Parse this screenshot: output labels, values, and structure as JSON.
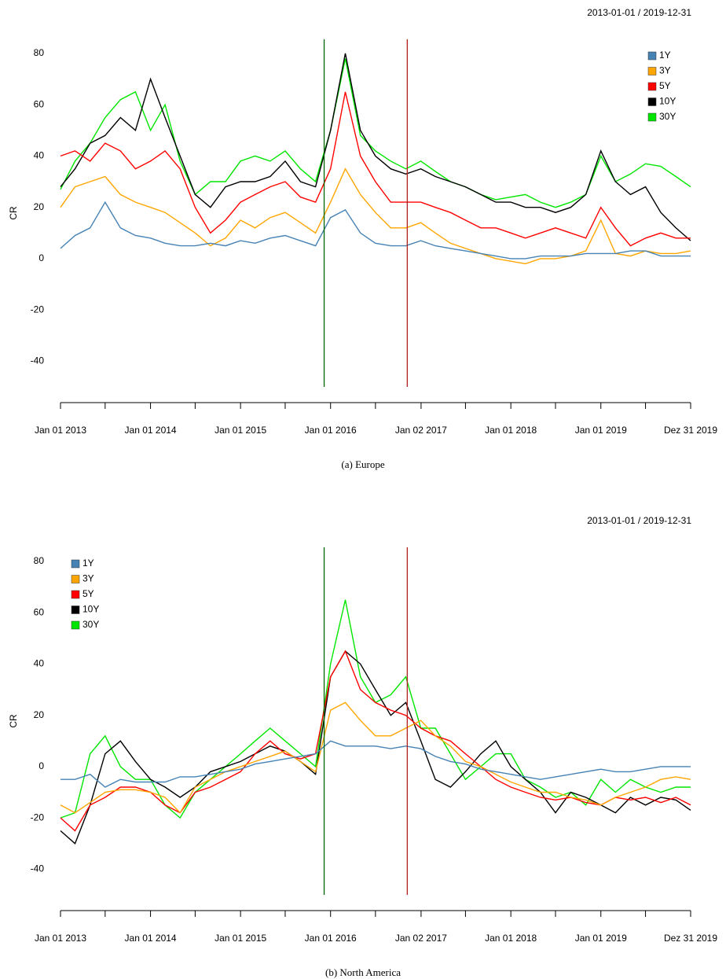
{
  "chart_data": [
    {
      "type": "line",
      "range_label": "2013-01-01 / 2019-12-31",
      "y_label": "CR",
      "caption": "(a) Europe",
      "legend": "top-right",
      "grid": false,
      "xlim": [
        "2013-01-01",
        "2019-12-31"
      ],
      "ylim": [
        -50,
        85.5
      ],
      "yticks": [
        -40,
        -20,
        0,
        20,
        40,
        60,
        80
      ],
      "xticks": [
        {
          "value": "2013-01-01",
          "label": "Jan 01 2013"
        },
        {
          "value": "2014-01-01",
          "label": "Jan 01 2014"
        },
        {
          "value": "2015-01-01",
          "label": "Jan 01 2015"
        },
        {
          "value": "2016-01-01",
          "label": "Jan 01 2016"
        },
        {
          "value": "2017-01-02",
          "label": "Jan 02 2017"
        },
        {
          "value": "2018-01-01",
          "label": "Jan 01 2018"
        },
        {
          "value": "2019-01-01",
          "label": "Jan 01 2019"
        },
        {
          "value": "2019-12-31",
          "label": "Dez 31 2019"
        }
      ],
      "xminorticks": [
        "2013-07-01",
        "2014-07-01",
        "2015-07-01",
        "2016-07-01",
        "2017-07-01",
        "2018-07-01",
        "2019-07-01"
      ],
      "vlines": [
        {
          "x": "2015-12-06",
          "color": "#006400"
        },
        {
          "x": "2016-11-07",
          "color": "#b22222"
        }
      ],
      "x": [
        "2013-01-01",
        "2013-03-01",
        "2013-05-01",
        "2013-07-01",
        "2013-09-01",
        "2013-11-01",
        "2014-01-01",
        "2014-03-01",
        "2014-05-01",
        "2014-07-01",
        "2014-09-01",
        "2014-11-01",
        "2015-01-01",
        "2015-03-01",
        "2015-05-01",
        "2015-07-01",
        "2015-09-01",
        "2015-11-01",
        "2016-01-01",
        "2016-03-01",
        "2016-05-01",
        "2016-07-01",
        "2016-09-01",
        "2016-11-01",
        "2017-01-01",
        "2017-03-01",
        "2017-05-01",
        "2017-07-01",
        "2017-09-01",
        "2017-11-01",
        "2018-01-01",
        "2018-03-01",
        "2018-05-01",
        "2018-07-01",
        "2018-09-01",
        "2018-11-01",
        "2019-01-01",
        "2019-03-01",
        "2019-05-01",
        "2019-07-01",
        "2019-09-01",
        "2019-11-01",
        "2019-12-31"
      ],
      "series": [
        {
          "name": "1Y",
          "color": "#4682b4",
          "values": [
            4,
            9,
            12,
            22,
            12,
            9,
            8,
            6,
            5,
            5,
            6,
            5,
            7,
            6,
            8,
            9,
            7,
            5,
            16,
            19,
            10,
            6,
            5,
            5,
            7,
            5,
            4,
            3,
            2,
            1,
            0,
            0,
            1,
            1,
            1,
            2,
            2,
            2,
            3,
            3,
            1,
            1,
            1
          ]
        },
        {
          "name": "3Y",
          "color": "#ffa500",
          "values": [
            20,
            28,
            30,
            32,
            25,
            22,
            20,
            18,
            14,
            10,
            5,
            8,
            15,
            12,
            16,
            18,
            14,
            10,
            22,
            35,
            25,
            18,
            12,
            12,
            14,
            10,
            6,
            4,
            2,
            0,
            -1,
            -2,
            0,
            0,
            1,
            3,
            15,
            2,
            1,
            3,
            2,
            2,
            3
          ]
        },
        {
          "name": "5Y",
          "color": "#ff0000",
          "values": [
            40,
            42,
            38,
            45,
            42,
            35,
            38,
            42,
            35,
            20,
            10,
            15,
            22,
            25,
            28,
            30,
            24,
            22,
            35,
            65,
            40,
            30,
            22,
            22,
            22,
            20,
            18,
            15,
            12,
            12,
            10,
            8,
            10,
            12,
            10,
            8,
            20,
            12,
            5,
            8,
            10,
            8,
            8
          ]
        },
        {
          "name": "10Y",
          "color": "#000000",
          "values": [
            28,
            35,
            45,
            48,
            55,
            50,
            70,
            55,
            40,
            25,
            20,
            28,
            30,
            30,
            32,
            38,
            30,
            28,
            50,
            80,
            50,
            40,
            35,
            33,
            35,
            32,
            30,
            28,
            25,
            22,
            22,
            20,
            20,
            18,
            20,
            25,
            42,
            30,
            25,
            28,
            18,
            12,
            7
          ]
        },
        {
          "name": "30Y",
          "color": "#00e600",
          "values": [
            27,
            38,
            45,
            55,
            62,
            65,
            50,
            60,
            38,
            25,
            30,
            30,
            38,
            40,
            38,
            42,
            35,
            30,
            50,
            78,
            48,
            42,
            38,
            35,
            38,
            34,
            30,
            28,
            25,
            23,
            24,
            25,
            22,
            20,
            22,
            25,
            40,
            30,
            33,
            37,
            36,
            32,
            28
          ]
        }
      ]
    },
    {
      "type": "line",
      "range_label": "2013-01-01 / 2019-12-31",
      "y_label": "CR",
      "caption": "(b) North America",
      "legend": "top-left",
      "grid": false,
      "xlim": [
        "2013-01-01",
        "2019-12-31"
      ],
      "ylim": [
        -50,
        85.5
      ],
      "yticks": [
        -40,
        -20,
        0,
        20,
        40,
        60,
        80
      ],
      "xticks": [
        {
          "value": "2013-01-01",
          "label": "Jan 01 2013"
        },
        {
          "value": "2014-01-01",
          "label": "Jan 01 2014"
        },
        {
          "value": "2015-01-01",
          "label": "Jan 01 2015"
        },
        {
          "value": "2016-01-01",
          "label": "Jan 01 2016"
        },
        {
          "value": "2017-01-02",
          "label": "Jan 02 2017"
        },
        {
          "value": "2018-01-01",
          "label": "Jan 01 2018"
        },
        {
          "value": "2019-01-01",
          "label": "Jan 01 2019"
        },
        {
          "value": "2019-12-31",
          "label": "Dez 31 2019"
        }
      ],
      "xminorticks": [
        "2013-07-01",
        "2014-07-01",
        "2015-07-01",
        "2016-07-01",
        "2017-07-01",
        "2018-07-01",
        "2019-07-01"
      ],
      "vlines": [
        {
          "x": "2015-12-06",
          "color": "#006400"
        },
        {
          "x": "2016-11-07",
          "color": "#b22222"
        }
      ],
      "x": [
        "2013-01-01",
        "2013-03-01",
        "2013-05-01",
        "2013-07-01",
        "2013-09-01",
        "2013-11-01",
        "2014-01-01",
        "2014-03-01",
        "2014-05-01",
        "2014-07-01",
        "2014-09-01",
        "2014-11-01",
        "2015-01-01",
        "2015-03-01",
        "2015-05-01",
        "2015-07-01",
        "2015-09-01",
        "2015-11-01",
        "2016-01-01",
        "2016-03-01",
        "2016-05-01",
        "2016-07-01",
        "2016-09-01",
        "2016-11-01",
        "2017-01-01",
        "2017-03-01",
        "2017-05-01",
        "2017-07-01",
        "2017-09-01",
        "2017-11-01",
        "2018-01-01",
        "2018-03-01",
        "2018-05-01",
        "2018-07-01",
        "2018-09-01",
        "2018-11-01",
        "2019-01-01",
        "2019-03-01",
        "2019-05-01",
        "2019-07-01",
        "2019-09-01",
        "2019-11-01",
        "2019-12-31"
      ],
      "series": [
        {
          "name": "1Y",
          "color": "#4682b4",
          "values": [
            -5,
            -5,
            -3,
            -8,
            -5,
            -6,
            -6,
            -6,
            -4,
            -4,
            -3,
            -2,
            -1,
            1,
            2,
            3,
            4,
            5,
            10,
            8,
            8,
            8,
            7,
            8,
            7,
            4,
            2,
            1,
            -1,
            -2,
            -3,
            -4,
            -5,
            -4,
            -3,
            -2,
            -1,
            -2,
            -2,
            -1,
            0,
            0,
            0
          ]
        },
        {
          "name": "3Y",
          "color": "#ffa500",
          "values": [
            -15,
            -18,
            -14,
            -10,
            -9,
            -9,
            -10,
            -12,
            -18,
            -8,
            -5,
            -2,
            0,
            2,
            4,
            6,
            2,
            -2,
            22,
            25,
            18,
            12,
            12,
            15,
            18,
            12,
            8,
            2,
            0,
            -3,
            -6,
            -8,
            -10,
            -10,
            -12,
            -13,
            -15,
            -12,
            -10,
            -8,
            -5,
            -4,
            -5
          ]
        },
        {
          "name": "5Y",
          "color": "#ff0000",
          "values": [
            -20,
            -25,
            -15,
            -12,
            -8,
            -8,
            -10,
            -15,
            -18,
            -10,
            -8,
            -5,
            -2,
            5,
            10,
            5,
            3,
            5,
            35,
            45,
            30,
            25,
            22,
            20,
            15,
            12,
            10,
            5,
            0,
            -5,
            -8,
            -10,
            -12,
            -13,
            -12,
            -14,
            -15,
            -12,
            -13,
            -12,
            -14,
            -12,
            -15
          ]
        },
        {
          "name": "10Y",
          "color": "#000000",
          "values": [
            -25,
            -30,
            -15,
            5,
            10,
            2,
            -5,
            -8,
            -12,
            -8,
            -2,
            0,
            2,
            5,
            8,
            6,
            2,
            -3,
            35,
            45,
            40,
            30,
            20,
            25,
            10,
            -5,
            -8,
            -2,
            5,
            10,
            0,
            -5,
            -10,
            -18,
            -10,
            -12,
            -15,
            -18,
            -12,
            -15,
            -12,
            -13,
            -17
          ]
        },
        {
          "name": "30Y",
          "color": "#00e600",
          "values": [
            -20,
            -18,
            5,
            12,
            0,
            -5,
            -5,
            -15,
            -20,
            -10,
            -5,
            0,
            5,
            10,
            15,
            10,
            5,
            0,
            40,
            65,
            35,
            25,
            28,
            35,
            15,
            15,
            5,
            -5,
            0,
            5,
            5,
            -5,
            -8,
            -12,
            -10,
            -15,
            -5,
            -10,
            -5,
            -8,
            -10,
            -8,
            -8
          ]
        }
      ]
    }
  ]
}
